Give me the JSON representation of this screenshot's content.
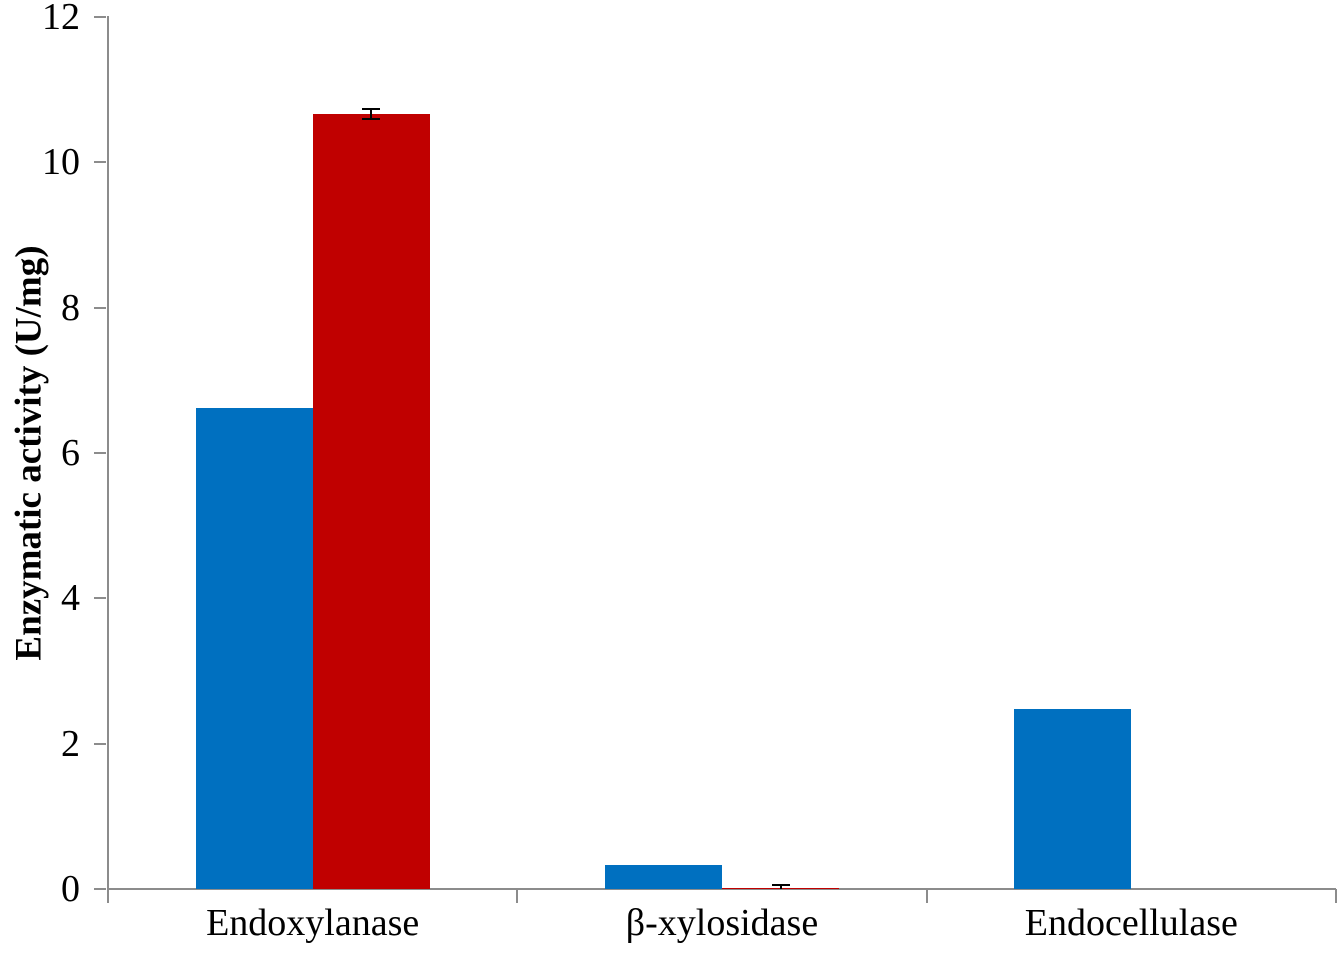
{
  "chart_data": {
    "type": "bar",
    "title": "",
    "ylabel": "Enzymatic activity (U/mg)",
    "xlabel": "",
    "ylim": [
      0,
      12
    ],
    "yticks": [
      0,
      2,
      4,
      6,
      8,
      10,
      12
    ],
    "grid": false,
    "legend_position": "none",
    "categories": [
      "Endoxylanase",
      "β-xylosidase",
      "Endocellulase"
    ],
    "series": [
      {
        "name": "blue",
        "color": "#0070C0",
        "values": [
          6.62,
          0.33,
          2.48
        ],
        "errors": [
          0,
          0,
          0
        ]
      },
      {
        "name": "red",
        "color": "#C00000",
        "values": [
          10.66,
          0.02,
          0
        ],
        "errors": [
          0.07,
          0.03,
          0
        ]
      }
    ],
    "axis_color": "#8C8C8C",
    "error_bar_color": "#000000",
    "background_color": "#FFFFFF"
  }
}
